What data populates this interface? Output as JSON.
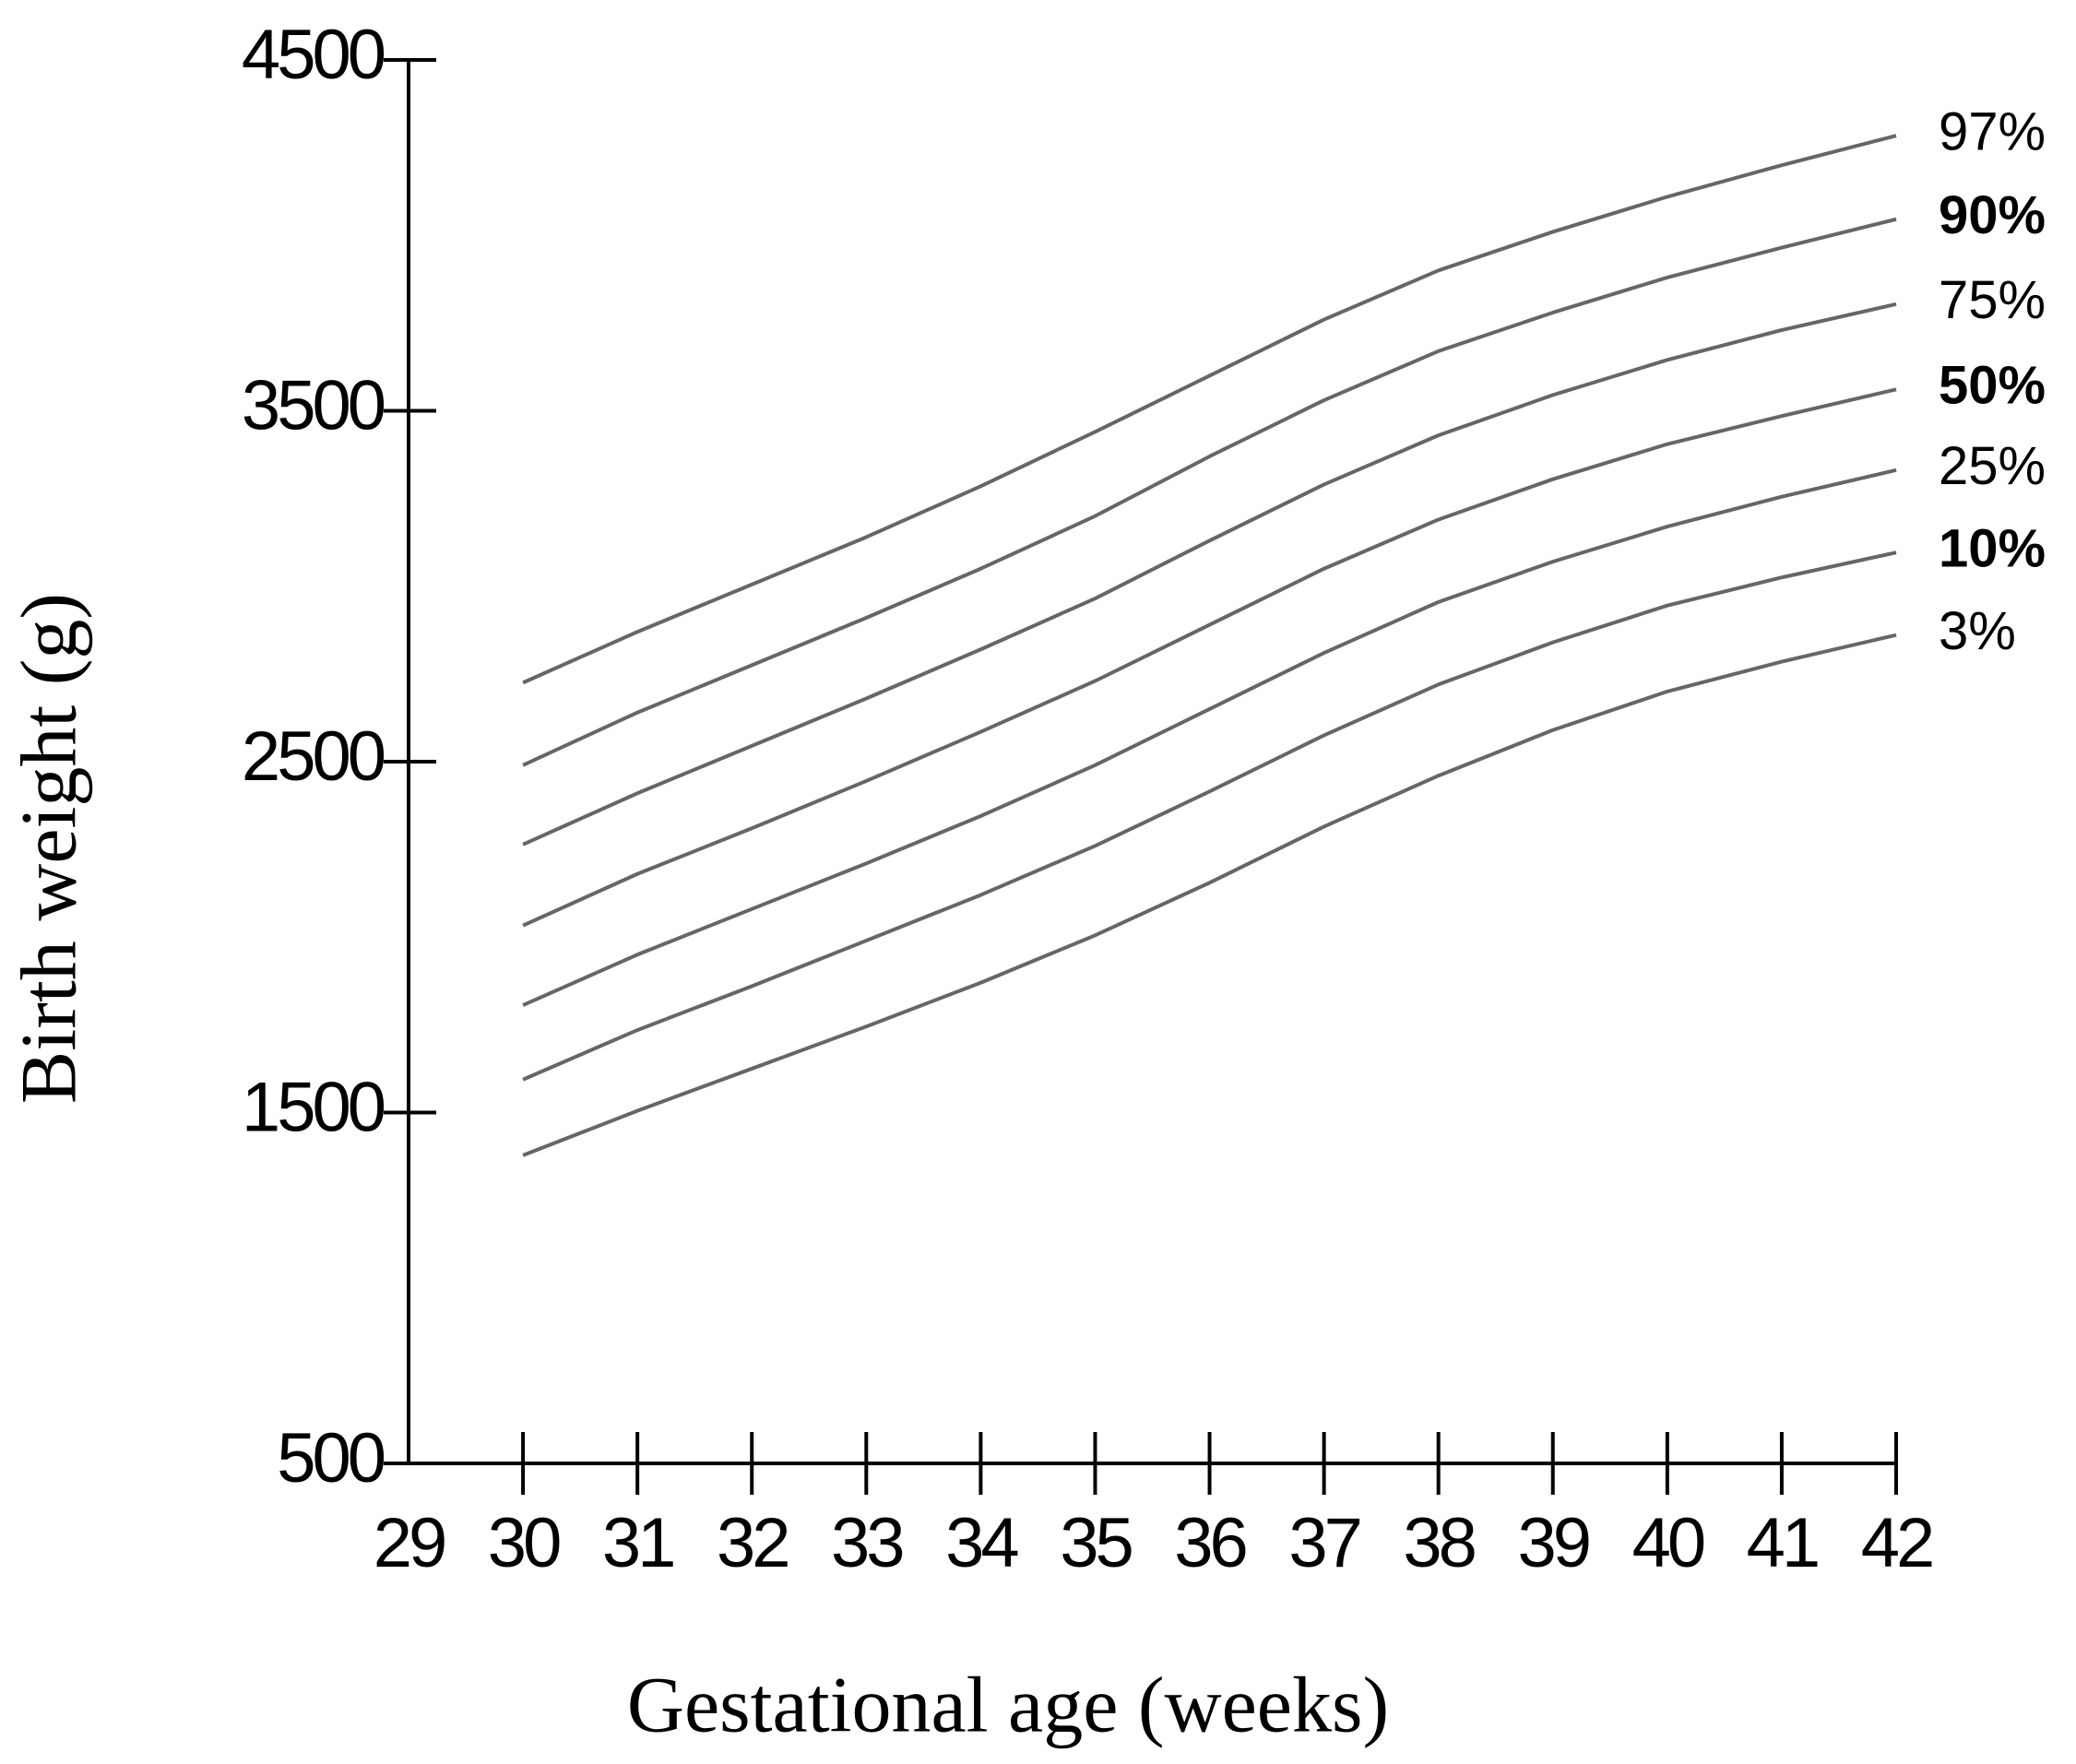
{
  "chart_data": {
    "type": "line",
    "x_label": "Gestational age (weeks)",
    "y_label": "Birth weight (g)",
    "x": [
      30,
      31,
      32,
      33,
      34,
      35,
      36,
      37,
      38,
      39,
      40,
      41,
      42
    ],
    "xlim": [
      29,
      42
    ],
    "xticks": [
      29,
      30,
      31,
      32,
      33,
      34,
      35,
      36,
      37,
      38,
      39,
      40,
      41,
      42
    ],
    "ylim": [
      500,
      4500
    ],
    "yticks": [
      500,
      1500,
      2500,
      3500,
      4500
    ],
    "grid": false,
    "series": [
      {
        "name": "97%",
        "color": "#666666",
        "bold": false,
        "values": [
          2725,
          2870,
          3005,
          3140,
          3285,
          3440,
          3600,
          3760,
          3900,
          4010,
          4110,
          4200,
          4284
        ]
      },
      {
        "name": "90%",
        "color": "#666666",
        "bold": true,
        "values": [
          2490,
          2640,
          2775,
          2910,
          3050,
          3200,
          3370,
          3530,
          3670,
          3780,
          3880,
          3965,
          4046
        ]
      },
      {
        "name": "75%",
        "color": "#666666",
        "bold": false,
        "values": [
          2264,
          2410,
          2545,
          2680,
          2820,
          2965,
          3130,
          3290,
          3430,
          3545,
          3645,
          3730,
          3804
        ]
      },
      {
        "name": "50%",
        "color": "#666666",
        "bold": true,
        "values": [
          2033,
          2180,
          2310,
          2445,
          2585,
          2730,
          2890,
          3050,
          3190,
          3305,
          3405,
          3485,
          3561
        ]
      },
      {
        "name": "25%",
        "color": "#666666",
        "bold": false,
        "values": [
          1806,
          1950,
          2080,
          2210,
          2345,
          2490,
          2650,
          2810,
          2955,
          3070,
          3170,
          3255,
          3331
        ]
      },
      {
        "name": "10%",
        "color": "#666666",
        "bold": true,
        "values": [
          1594,
          1735,
          1860,
          1990,
          2120,
          2260,
          2415,
          2575,
          2720,
          2840,
          2945,
          3025,
          3096
        ]
      },
      {
        "name": "3%",
        "color": "#666666",
        "bold": false,
        "values": [
          1378,
          1505,
          1625,
          1745,
          1870,
          2005,
          2155,
          2315,
          2460,
          2590,
          2700,
          2785,
          2861
        ]
      }
    ]
  }
}
